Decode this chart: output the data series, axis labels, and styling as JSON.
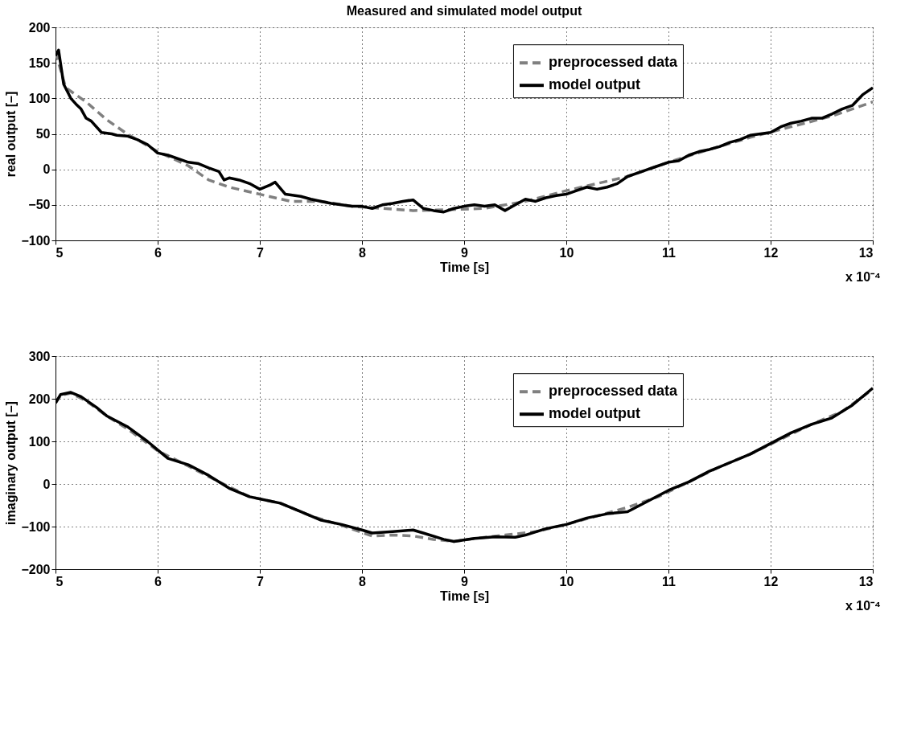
{
  "chart_data": [
    {
      "type": "line",
      "title": "Measured and simulated model output",
      "xlabel": "Time [s]",
      "ylabel": "real output [–]",
      "xlim": [
        5,
        13
      ],
      "xticks": [
        5,
        6,
        7,
        8,
        9,
        10,
        11,
        12,
        13
      ],
      "ylim": [
        -100,
        200
      ],
      "yticks": [
        -100,
        -50,
        0,
        50,
        100,
        150,
        200
      ],
      "grid": true,
      "legend": "top right",
      "annotations": [
        "x 10⁻⁴"
      ],
      "series": [
        {
          "name": "preprocessed data",
          "color": "#808080",
          "line_style": "dashed",
          "x": [
            5.0,
            5.1,
            5.3,
            5.5,
            5.7,
            6.0,
            6.3,
            6.5,
            6.7,
            7.0,
            7.3,
            7.6,
            7.9,
            8.2,
            8.5,
            8.8,
            9.2,
            9.6,
            10.0,
            10.3,
            10.6,
            11.0,
            11.4,
            11.8,
            12.2,
            12.6,
            13.0
          ],
          "values": [
            165,
            115,
            95,
            70,
            50,
            25,
            5,
            -15,
            -25,
            -35,
            -45,
            -45,
            -52,
            -55,
            -58,
            -57,
            -55,
            -45,
            -30,
            -20,
            -10,
            10,
            28,
            45,
            60,
            75,
            95
          ]
        },
        {
          "name": "model output",
          "color": "#000000",
          "line_style": "solid",
          "x": [
            5.0,
            5.03,
            5.08,
            5.15,
            5.2,
            5.25,
            5.3,
            5.35,
            5.45,
            5.55,
            5.6,
            5.7,
            5.8,
            5.9,
            6.0,
            6.1,
            6.2,
            6.3,
            6.4,
            6.5,
            6.6,
            6.65,
            6.7,
            6.8,
            6.9,
            7.0,
            7.1,
            7.15,
            7.25,
            7.4,
            7.5,
            7.6,
            7.7,
            7.8,
            7.9,
            8.0,
            8.1,
            8.2,
            8.3,
            8.4,
            8.5,
            8.6,
            8.7,
            8.8,
            8.9,
            9.0,
            9.1,
            9.2,
            9.3,
            9.4,
            9.5,
            9.6,
            9.7,
            9.8,
            9.9,
            10.0,
            10.1,
            10.2,
            10.3,
            10.4,
            10.5,
            10.6,
            10.7,
            10.8,
            10.9,
            11.0,
            11.1,
            11.2,
            11.3,
            11.4,
            11.5,
            11.6,
            11.7,
            11.8,
            11.9,
            12.0,
            12.1,
            12.2,
            12.3,
            12.4,
            12.5,
            12.6,
            12.7,
            12.8,
            12.9,
            13.0
          ],
          "values": [
            160,
            168,
            120,
            100,
            92,
            85,
            72,
            68,
            52,
            50,
            48,
            47,
            42,
            35,
            23,
            20,
            15,
            10,
            8,
            2,
            -3,
            -15,
            -12,
            -15,
            -20,
            -28,
            -22,
            -18,
            -35,
            -38,
            -42,
            -45,
            -48,
            -50,
            -52,
            -52,
            -55,
            -50,
            -48,
            -45,
            -43,
            -55,
            -58,
            -60,
            -55,
            -52,
            -50,
            -52,
            -50,
            -58,
            -50,
            -42,
            -45,
            -40,
            -37,
            -35,
            -30,
            -25,
            -28,
            -25,
            -20,
            -10,
            -5,
            0,
            5,
            10,
            12,
            20,
            25,
            28,
            32,
            38,
            42,
            48,
            50,
            52,
            60,
            65,
            68,
            72,
            72,
            78,
            85,
            90,
            105,
            115
          ]
        }
      ]
    },
    {
      "type": "line",
      "xlabel": "Time [s]",
      "ylabel": "imaginary output [–]",
      "xlim": [
        5,
        13
      ],
      "xticks": [
        5,
        6,
        7,
        8,
        9,
        10,
        11,
        12,
        13
      ],
      "ylim": [
        -200,
        300
      ],
      "yticks": [
        -200,
        -100,
        0,
        100,
        200,
        300
      ],
      "grid": true,
      "legend": "top right",
      "annotations": [
        "x 10⁻⁴"
      ],
      "series": [
        {
          "name": "preprocessed data",
          "color": "#808080",
          "line_style": "dashed",
          "x": [
            5.0,
            5.05,
            5.15,
            5.3,
            5.5,
            5.7,
            6.0,
            6.3,
            6.6,
            6.9,
            7.2,
            7.5,
            7.8,
            8.1,
            8.3,
            8.5,
            8.7,
            8.9,
            9.1,
            9.4,
            9.7,
            10.0,
            10.3,
            10.6,
            10.9,
            11.2,
            11.5,
            11.8,
            12.1,
            12.4,
            12.7,
            13.0
          ],
          "values": [
            190,
            208,
            213,
            195,
            160,
            130,
            78,
            42,
            5,
            -30,
            -45,
            -75,
            -97,
            -122,
            -120,
            -122,
            -130,
            -135,
            -128,
            -120,
            -112,
            -95,
            -75,
            -55,
            -30,
            5,
            40,
            70,
            105,
            140,
            170,
            222
          ]
        },
        {
          "name": "model output",
          "color": "#000000",
          "line_style": "solid",
          "x": [
            5.0,
            5.05,
            5.15,
            5.25,
            5.4,
            5.5,
            5.7,
            5.9,
            6.0,
            6.1,
            6.3,
            6.5,
            6.7,
            6.9,
            7.1,
            7.2,
            7.4,
            7.6,
            7.8,
            8.0,
            8.1,
            8.3,
            8.5,
            8.6,
            8.8,
            8.9,
            9.1,
            9.3,
            9.5,
            9.6,
            9.8,
            10.0,
            10.2,
            10.4,
            10.6,
            10.8,
            11.0,
            11.2,
            11.4,
            11.6,
            11.8,
            12.0,
            12.2,
            12.4,
            12.6,
            12.8,
            13.0
          ],
          "values": [
            190,
            210,
            215,
            205,
            180,
            160,
            135,
            100,
            80,
            60,
            45,
            20,
            -10,
            -30,
            -40,
            -45,
            -65,
            -85,
            -95,
            -108,
            -115,
            -112,
            -108,
            -115,
            -130,
            -135,
            -128,
            -124,
            -125,
            -120,
            -105,
            -95,
            -80,
            -70,
            -65,
            -40,
            -15,
            5,
            30,
            50,
            70,
            95,
            120,
            140,
            155,
            185,
            225
          ]
        }
      ]
    }
  ]
}
